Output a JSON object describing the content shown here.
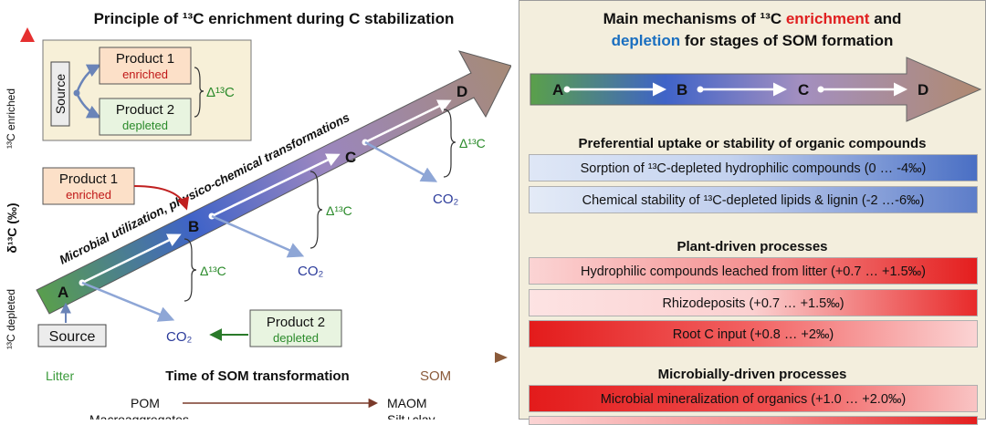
{
  "left": {
    "title": "Principle of ¹³C enrichment during C stabilization",
    "y_axis_label": "δ¹³C (‰)",
    "y_top_label": "¹³C enriched",
    "y_bottom_label": "¹³C depleted",
    "x_axis_label": "Time of SOM transformation",
    "x_left_label": "Litter",
    "x_right_label": "SOM",
    "inset": {
      "source": "Source",
      "product1": "Product 1",
      "product1_sub": "enriched",
      "product2": "Product 2",
      "product2_sub": "depleted",
      "delta": "Δ¹³C"
    },
    "arrow_text": "Microbial utilization, physico-chemical transformations",
    "stages": [
      "A",
      "B",
      "C",
      "D"
    ],
    "delta": "Δ¹³C",
    "co2": "CO₂",
    "source_box": "Source",
    "product1_box": "Product 1",
    "product1_box_sub": "enriched",
    "product2_box": "Product 2",
    "product2_box_sub": "depleted",
    "bottom_pom": "POM",
    "bottom_maom": "MAOM",
    "bottom_macro": "Macroaggregates",
    "bottom_silt": "Silt+clay"
  },
  "right": {
    "title_line1_a": "Main mechanisms of ¹³C ",
    "title_line1_b": "enrichment",
    "title_line1_c": " and",
    "title_line2_a": "depletion",
    "title_line2_b": " for stages of SOM formation",
    "stages": [
      "A",
      "B",
      "C",
      "D"
    ],
    "sections": [
      {
        "heading": "Preferential uptake or stability of organic compounds",
        "items": [
          "Sorption of ¹³C-depleted hydrophilic compounds (0 … -4‰)",
          "Chemical stability of ¹³C-depleted lipids & lignin (-2 …-6‰)"
        ]
      },
      {
        "heading": "Plant-driven processes",
        "items": [
          "Hydrophilic compounds leached from litter (+0.7 … +1.5‰)",
          "Rhizodeposits  (+0.7 … +1.5‰)",
          "Root C input (+0.8 … +2‰)"
        ]
      },
      {
        "heading": "Microbially-driven processes",
        "items": [
          "Microbial mineralization of organics (+1.0 … +2.0‰)"
        ]
      }
    ]
  },
  "colors": {
    "enrichment": "#e02020",
    "depletion": "#1a6fc0",
    "litter_green": "#3a9a3a",
    "som_brown": "#8a5a3a"
  }
}
